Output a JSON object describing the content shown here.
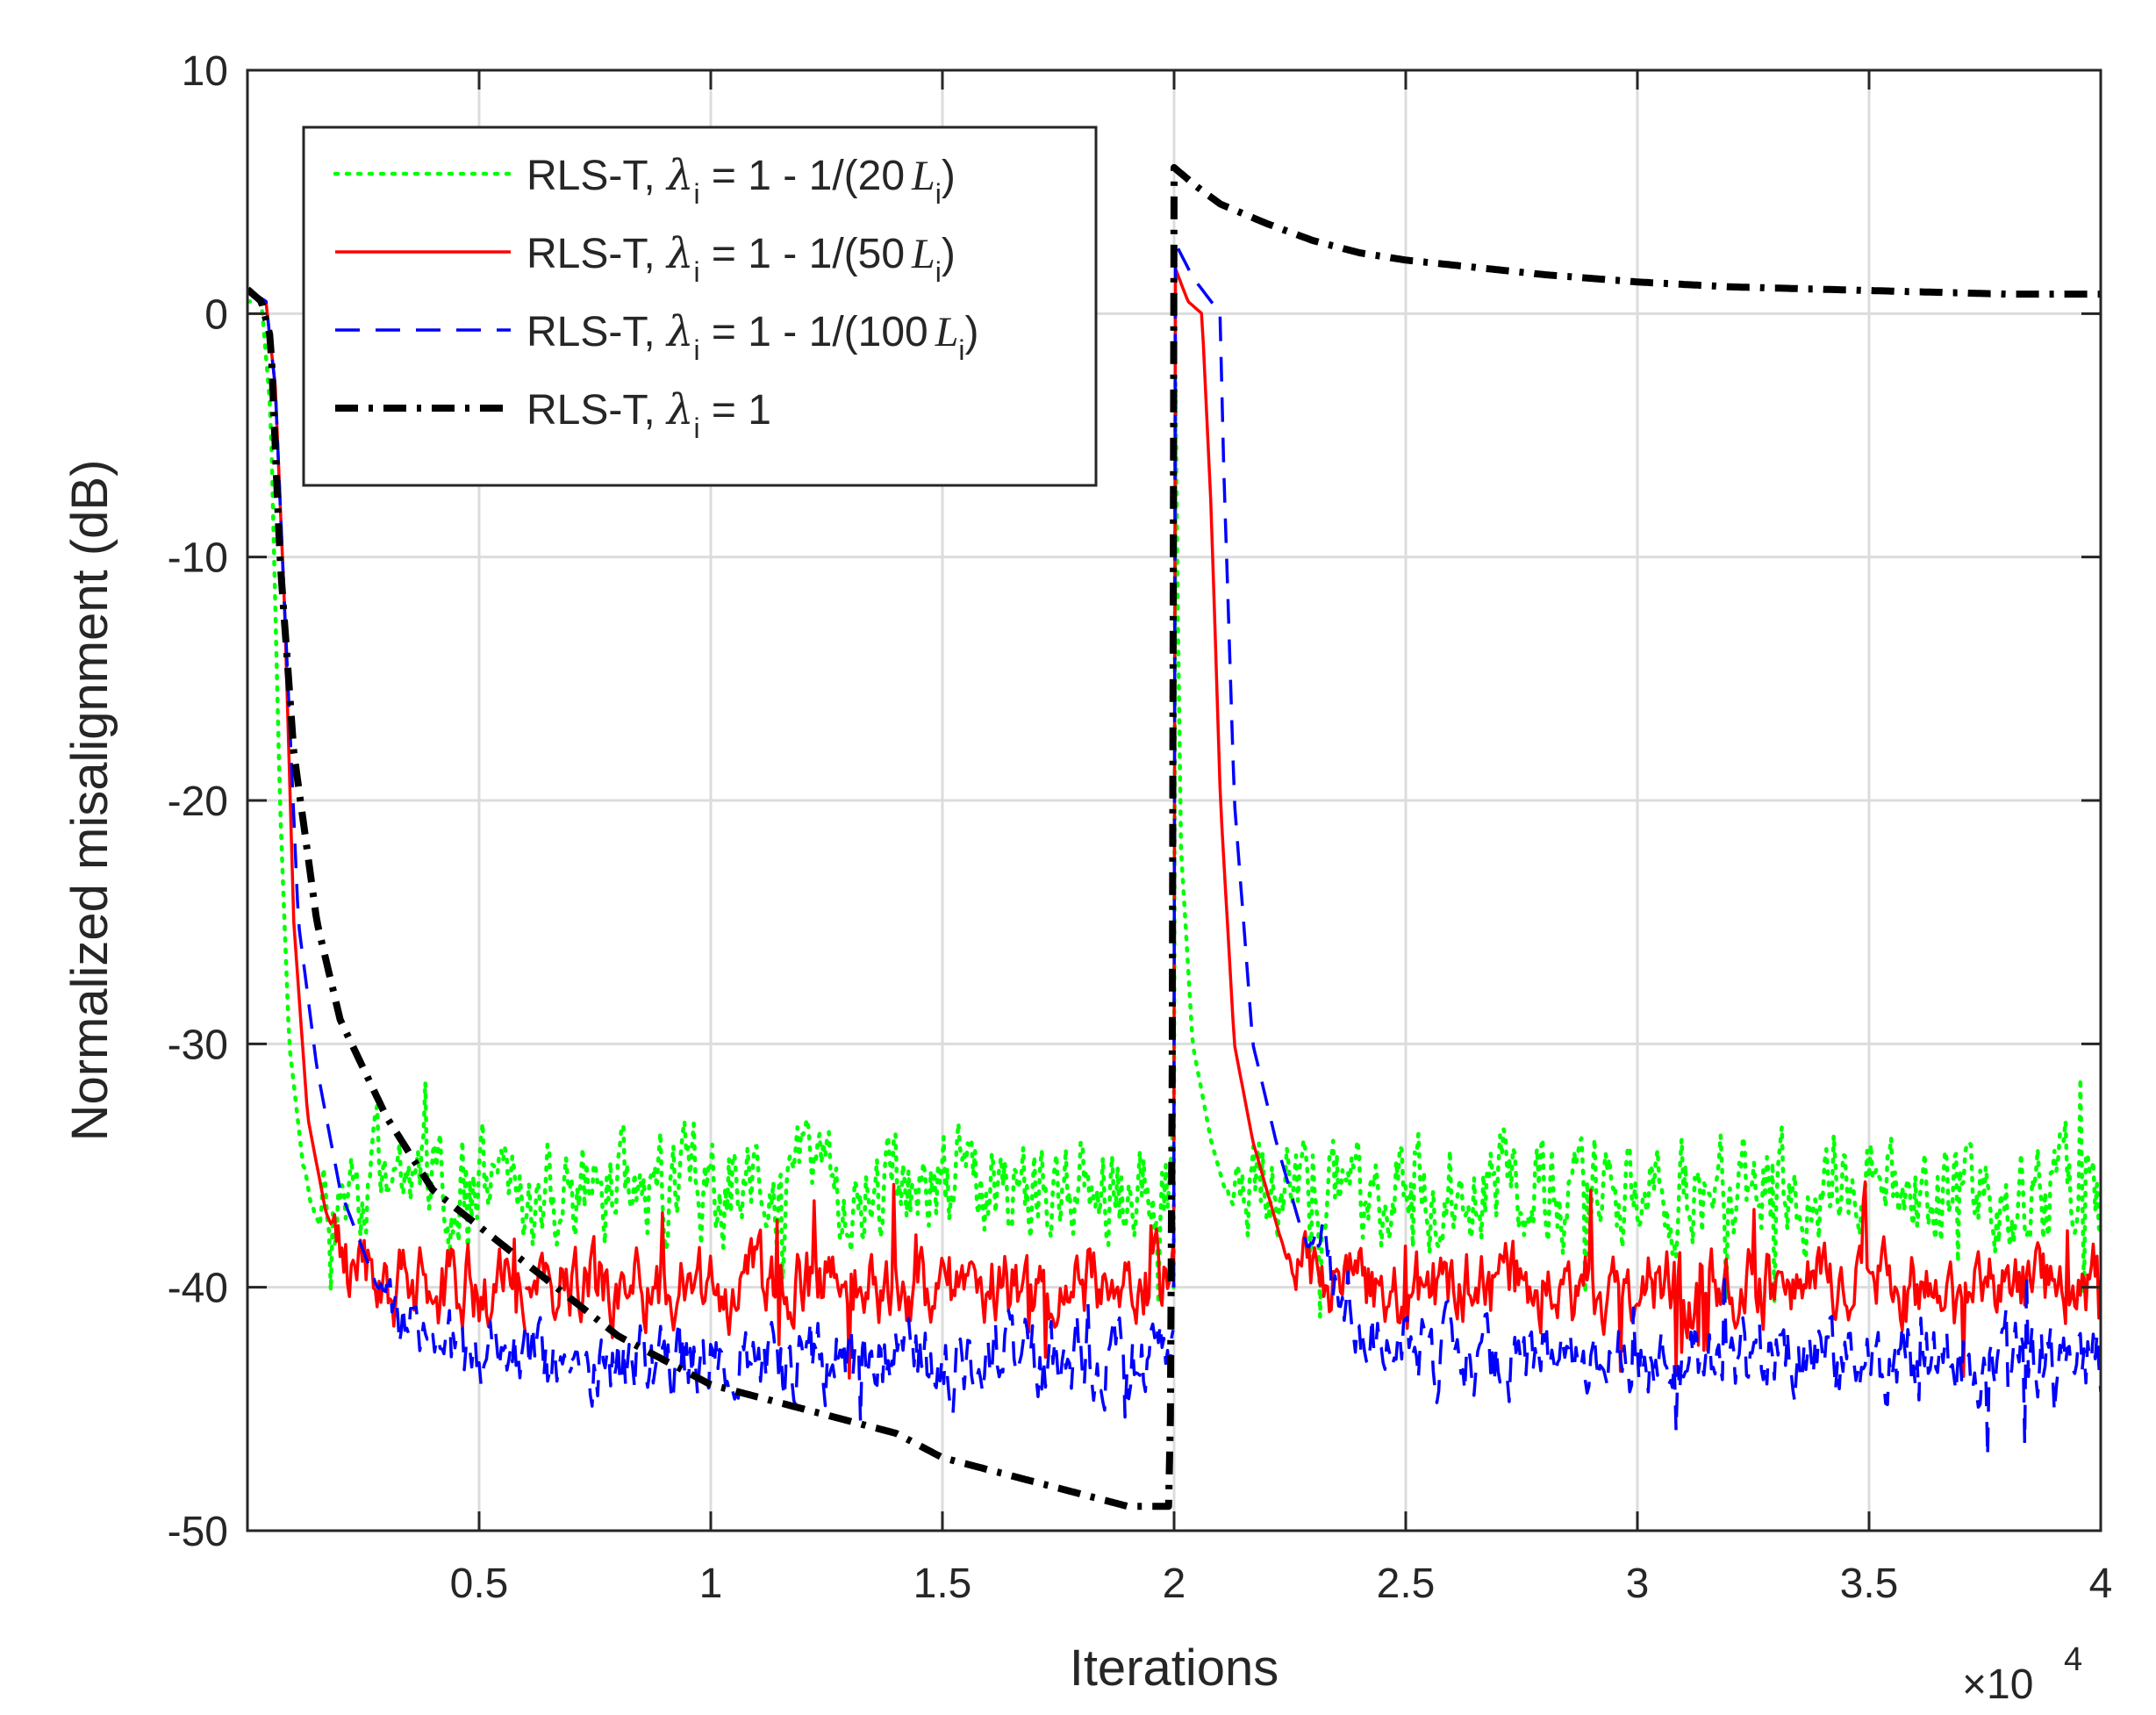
{
  "chart_data": {
    "type": "line",
    "xlabel": "Iterations",
    "ylabel": "Normalized misalignment (dB)",
    "x_multiplier": "×10",
    "x_multiplier_exp": "4",
    "xlim": [
      0,
      40000
    ],
    "ylim": [
      -50,
      10
    ],
    "grid": true,
    "legend_position": "top-left",
    "x_ticks": [
      {
        "value": 5000,
        "label": "0.5"
      },
      {
        "value": 10000,
        "label": "1"
      },
      {
        "value": 15000,
        "label": "1.5"
      },
      {
        "value": 20000,
        "label": "2"
      },
      {
        "value": 25000,
        "label": "2.5"
      },
      {
        "value": 30000,
        "label": "3"
      },
      {
        "value": 35000,
        "label": "3.5"
      },
      {
        "value": 40000,
        "label": "4"
      }
    ],
    "y_ticks": [
      {
        "value": 10,
        "label": "10"
      },
      {
        "value": 0,
        "label": "0"
      },
      {
        "value": -10,
        "label": "-10"
      },
      {
        "value": -20,
        "label": "-20"
      },
      {
        "value": -30,
        "label": "-30"
      },
      {
        "value": -40,
        "label": "-40"
      },
      {
        "value": -50,
        "label": "-50"
      }
    ],
    "series": [
      {
        "name": "RLS-T, λi = 1 - 1/(20 Li)",
        "legend": {
          "prefix": "RLS-T, ",
          "sym": "λ",
          "sub": "i",
          "mid": " = 1 - 1/(20",
          "L": "L",
          "Lsub": "i",
          "end": ")"
        },
        "color": "#00ff00",
        "style": "dotted",
        "segments": [
          {
            "x": [
              0,
              300,
              500,
              700,
              900,
              1200,
              1500,
              2000,
              2500,
              3000
            ],
            "y": [
              0.5,
              0.5,
              -4,
              -20,
              -30,
              -35,
              -36,
              -36,
              -36,
              -36
            ],
            "noise_from": 1200,
            "noise": 2.5,
            "spikes": 4.5
          },
          {
            "x": [
              3000,
              10000,
              19980
            ],
            "y": [
              -36,
              -36,
              -36
            ],
            "noise_from": 3000,
            "noise": 2.5,
            "spikes": 4.5
          },
          {
            "x": [
              19990,
              20000,
              20050,
              20150,
              20400,
              20800,
              21100,
              22000,
              40000
            ],
            "y": [
              -40,
              5,
              -8,
              -22,
              -30,
              -34,
              -36,
              -36,
              -36
            ],
            "noise_from": 21100,
            "noise": 2.5,
            "spikes": 4.5
          }
        ]
      },
      {
        "name": "RLS-T, λi = 1 - 1/(50 Li)",
        "legend": {
          "prefix": "RLS-T, ",
          "sym": "λ",
          "sub": "i",
          "mid": " = 1 - 1/(50",
          "L": "L",
          "Lsub": "i",
          "end": ")"
        },
        "color": "#ff0000",
        "style": "solid",
        "segments": [
          {
            "x": [
              0,
              400,
              600,
              800,
              1000,
              1300,
              1700,
              2200,
              3000,
              4000,
              6000
            ],
            "y": [
              1,
              0.5,
              -3,
              -12,
              -25,
              -33,
              -37,
              -39,
              -40,
              -40,
              -40
            ],
            "noise_from": 1700,
            "noise": 1.8,
            "spikes": 3.5
          },
          {
            "x": [
              6000,
              12000,
              19980
            ],
            "y": [
              -40,
              -40,
              -40
            ],
            "noise_from": 6000,
            "noise": 1.8,
            "spikes": 3.5
          },
          {
            "x": [
              19990,
              20000,
              20300,
              20600,
              20800,
              21000,
              21300,
              21700,
              22300,
              23000,
              40000
            ],
            "y": [
              -40,
              2,
              0.5,
              0,
              -8,
              -20,
              -30,
              -34,
              -38,
              -40,
              -40
            ],
            "noise_from": 22300,
            "noise": 1.8,
            "spikes": 3.5
          }
        ]
      },
      {
        "name": "RLS-T, λi = 1 - 1/(100 Li)",
        "legend": {
          "prefix": "RLS-T, ",
          "sym": "λ",
          "sub": "i",
          "mid": " = 1 - 1/(100",
          "L": "L",
          "Lsub": "i",
          "end": ")"
        },
        "color": "#0000ff",
        "style": "dashed",
        "segments": [
          {
            "x": [
              0,
              400,
              600,
              800,
              1100,
              1500,
              2000,
              2800,
              3800,
              5000,
              7000
            ],
            "y": [
              1,
              0.5,
              -3,
              -12,
              -25,
              -31,
              -36,
              -40,
              -42,
              -43,
              -43
            ],
            "noise_from": 2800,
            "noise": 1.8,
            "spikes": 3.5
          },
          {
            "x": [
              7000,
              14000,
              19980
            ],
            "y": [
              -43,
              -43,
              -43
            ],
            "noise_from": 7000,
            "noise": 1.8,
            "spikes": 3.5
          },
          {
            "x": [
              19990,
              20000,
              20400,
              21000,
              21050,
              21300,
              21700,
              22200,
              22800,
              23500,
              24500,
              26000,
              40000
            ],
            "y": [
              -40,
              3,
              1.5,
              0,
              -5,
              -20,
              -30,
              -34,
              -38,
              -40,
              -42,
              -43,
              -43
            ],
            "noise_from": 22800,
            "noise": 1.8,
            "spikes": 3.5
          }
        ]
      },
      {
        "name": "RLS-T, λi = 1",
        "legend": {
          "prefix": "RLS-T, ",
          "sym": "λ",
          "sub": "i",
          "mid": " = 1",
          "L": "",
          "Lsub": "",
          "end": ""
        },
        "color": "#000000",
        "style": "dashdot",
        "segments": [
          {
            "x": [
              0,
              300,
              500,
              700,
              1000,
              1500,
              2000,
              3000,
              4000,
              5000,
              6000,
              7000,
              8000,
              9000,
              10000,
              11000,
              12000,
              13000,
              14000,
              15000,
              16000,
              17000,
              18000,
              19000,
              19900,
              19950,
              20000,
              20500,
              21000,
              22000,
              23000,
              24000,
              25000,
              26000,
              28000,
              30000,
              32000,
              34000,
              36000,
              38000,
              40000
            ],
            "y": [
              1,
              0.5,
              -1,
              -10,
              -18,
              -25,
              -29,
              -33,
              -36,
              -37.5,
              -39,
              -40.5,
              -42,
              -43,
              -44,
              -44.5,
              -45,
              -45.5,
              -46,
              -47,
              -47.5,
              -48,
              -48.5,
              -49,
              -49,
              -40,
              6,
              5.2,
              4.5,
              3.7,
              3.0,
              2.5,
              2.2,
              2.0,
              1.6,
              1.3,
              1.1,
              1.0,
              0.9,
              0.8,
              0.8
            ],
            "noise_from": 99999,
            "noise": 0,
            "spikes": 0
          }
        ]
      }
    ]
  }
}
